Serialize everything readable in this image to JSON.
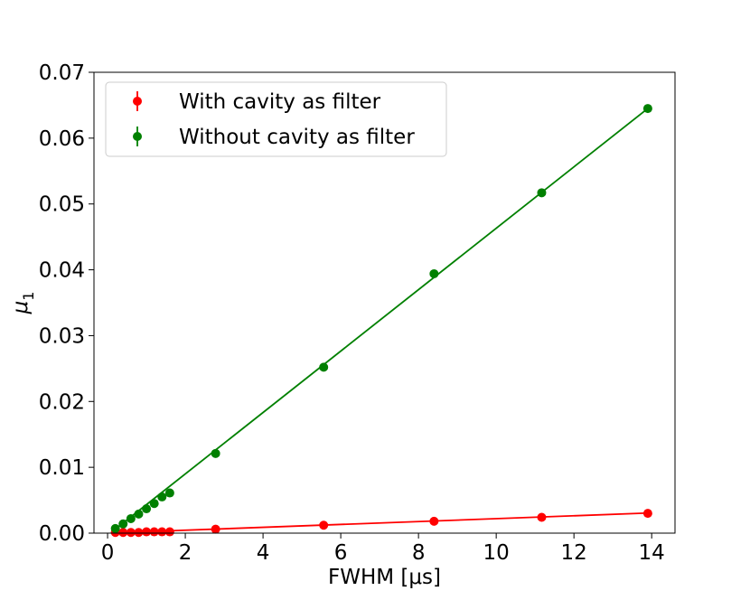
{
  "chart_data": {
    "type": "scatter",
    "xlabel": "FWHM [μs]",
    "ylabel_base": "μ",
    "ylabel_sub": "1",
    "xlim": [
      -0.35,
      14.6
    ],
    "ylim": [
      0,
      0.07
    ],
    "xticks": [
      0,
      2,
      4,
      6,
      8,
      10,
      12,
      14
    ],
    "xtick_labels": [
      "0",
      "2",
      "4",
      "6",
      "8",
      "10",
      "12",
      "14"
    ],
    "yticks": [
      0,
      0.01,
      0.02,
      0.03,
      0.04,
      0.05,
      0.06,
      0.07
    ],
    "ytick_labels": [
      "0.00",
      "0.01",
      "0.02",
      "0.03",
      "0.04",
      "0.05",
      "0.06",
      "0.07"
    ],
    "grid": false,
    "legend_position": "top-left",
    "series": [
      {
        "name": "With cavity as filter",
        "color": "#ff0000",
        "x": [
          0.2,
          0.4,
          0.6,
          0.8,
          1.0,
          1.2,
          1.4,
          1.6,
          2.78,
          5.56,
          8.4,
          11.17,
          13.9
        ],
        "y": [
          0.0001,
          0.0001,
          0.0001,
          0.0001,
          0.0002,
          0.0002,
          0.0002,
          0.0002,
          0.0006,
          0.0012,
          0.0018,
          0.0024,
          0.003
        ],
        "fit": {
          "x": [
            0.2,
            13.9
          ],
          "y": [
            5e-05,
            0.00305
          ]
        }
      },
      {
        "name": "Without cavity as filter",
        "color": "#008000",
        "x": [
          0.2,
          0.4,
          0.6,
          0.8,
          1.0,
          1.2,
          1.4,
          1.6,
          2.78,
          5.56,
          8.4,
          11.17,
          13.9
        ],
        "y": [
          0.0007,
          0.0014,
          0.0022,
          0.0029,
          0.0037,
          0.0045,
          0.0055,
          0.0061,
          0.0121,
          0.0252,
          0.0394,
          0.0517,
          0.0645
        ],
        "fit": {
          "x": [
            0.2,
            13.9
          ],
          "y": [
            0.0006,
            0.0645
          ]
        }
      }
    ]
  }
}
